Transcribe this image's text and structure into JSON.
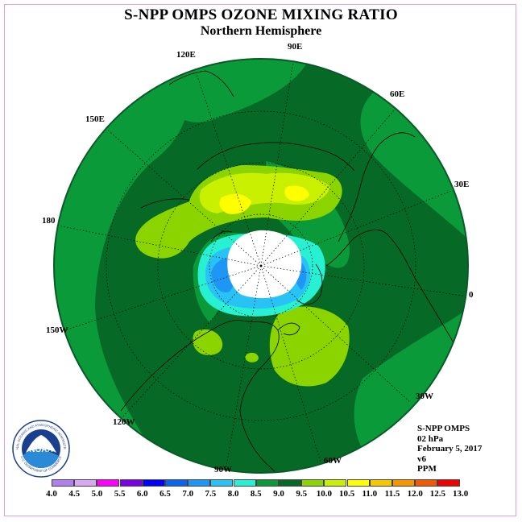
{
  "title": "S-NPP OMPS OZONE MIXING RATIO",
  "subtitle": "Northern Hemisphere",
  "longitude_labels": {
    "lon_90e": "90E",
    "lon_60e": "60E",
    "lon_30e": "30E",
    "lon_0": "0",
    "lon_30w": "30W",
    "lon_60w": "60W",
    "lon_90w": "90W",
    "lon_120w": "120W",
    "lon_150w": "150W",
    "lon_180": "180",
    "lon_150e": "150E",
    "lon_120e": "120E"
  },
  "info": {
    "instrument": "S-NPP OMPS",
    "level": "02 hPa",
    "date": "February 5, 2017",
    "version": "v6",
    "units": "PPM"
  },
  "logo_text": {
    "acronym": "NOAA",
    "top_arc": "NATIONAL OCEANIC AND ATMOSPHERIC ADMINISTRATION",
    "bottom_arc": "U.S. DEPARTMENT OF COMMERCE"
  },
  "colorbar": {
    "ticks": [
      "4.0",
      "4.5",
      "5.0",
      "5.5",
      "6.0",
      "6.5",
      "7.0",
      "7.5",
      "8.0",
      "8.5",
      "9.0",
      "9.5",
      "10.0",
      "10.5",
      "11.0",
      "11.5",
      "12.0",
      "12.5",
      "13.0"
    ],
    "colors": [
      "#b07ff0",
      "#d8a8f4",
      "#ff00ff",
      "#7a00e6",
      "#0000ff",
      "#0a64ee",
      "#1e96f5",
      "#28c2f5",
      "#28f0d2",
      "#0a9a3a",
      "#066a26",
      "#8cd400",
      "#c8f000",
      "#ffff00",
      "#f5c800",
      "#f59600",
      "#f05a00",
      "#f00000",
      "#8b5a3c"
    ]
  }
}
